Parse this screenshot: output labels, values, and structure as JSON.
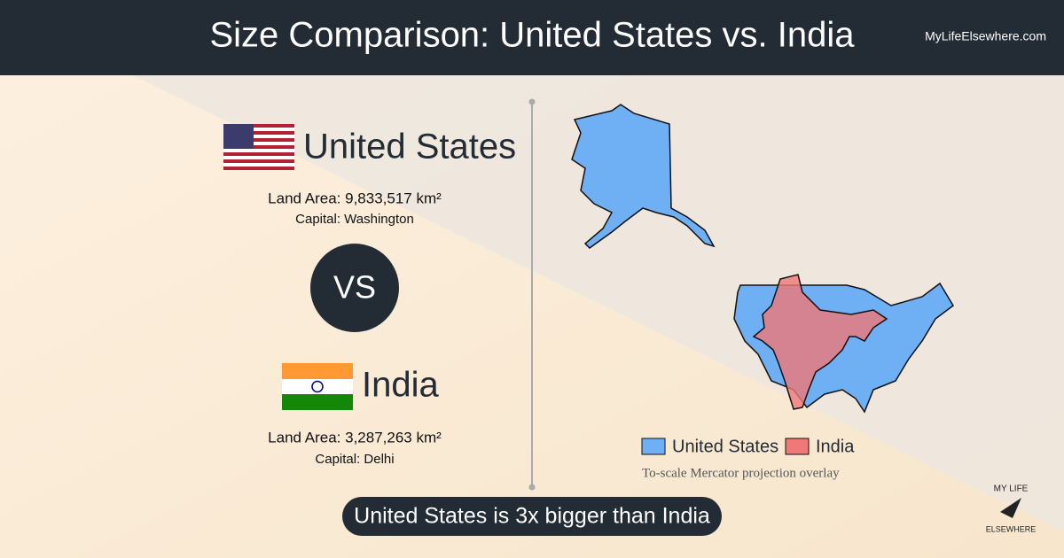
{
  "header": {
    "title": "Size Comparison: United States vs. India",
    "site": "MyLifeElsewhere.com"
  },
  "countries": [
    {
      "name": "United States",
      "land_area": "Land Area: 9,833,517 km²",
      "capital": "Capital: Washington"
    },
    {
      "name": "India",
      "land_area": "Land Area: 3,287,263 km²",
      "capital": "Capital: Delhi"
    }
  ],
  "versus": "VS",
  "map": {
    "legend": [
      "United States",
      "India"
    ],
    "note": "To-scale Mercator projection overlay"
  },
  "summary": "United States is 3x bigger than India",
  "logo": {
    "top": "MY LIFE",
    "bottom": "ELSEWHERE"
  }
}
